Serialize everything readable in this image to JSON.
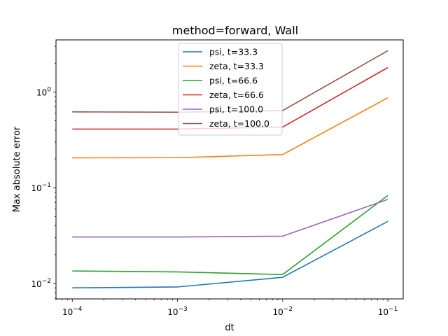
{
  "chart_data": {
    "type": "line",
    "title": "method=forward, Wall",
    "xlabel": "dt",
    "ylabel": "Max absolute error",
    "xscale": "log",
    "yscale": "log",
    "xlim": [
      7e-05,
      0.14
    ],
    "ylim": [
      0.0069,
      3.5
    ],
    "x": [
      0.0001,
      0.001,
      0.01,
      0.1
    ],
    "xticks": [
      {
        "base": "10",
        "exp": "−4",
        "value": 0.0001
      },
      {
        "base": "10",
        "exp": "−3",
        "value": 0.001
      },
      {
        "base": "10",
        "exp": "−2",
        "value": 0.01
      },
      {
        "base": "10",
        "exp": "−1",
        "value": 0.1
      }
    ],
    "yticks": [
      {
        "base": "10",
        "exp": "−2",
        "value": 0.01
      },
      {
        "base": "10",
        "exp": "−1",
        "value": 0.1
      },
      {
        "base": "10",
        "exp": "0",
        "value": 1
      }
    ],
    "grid": false,
    "legend_position": "top-center",
    "series": [
      {
        "name": "psi, t=33.3",
        "color": "#1f77b4",
        "values": [
          0.009,
          0.0092,
          0.0116,
          0.0445
        ]
      },
      {
        "name": "zeta, t=33.3",
        "color": "#ff7f0e",
        "values": [
          0.205,
          0.206,
          0.222,
          0.87
        ]
      },
      {
        "name": "psi, t=66.6",
        "color": "#2ca02c",
        "values": [
          0.0135,
          0.0132,
          0.0124,
          0.083
        ]
      },
      {
        "name": "zeta, t=66.6",
        "color": "#d62728",
        "values": [
          0.41,
          0.41,
          0.43,
          1.8
        ]
      },
      {
        "name": "psi, t=100.0",
        "color": "#9467bd",
        "values": [
          0.0306,
          0.0306,
          0.0312,
          0.0755
        ]
      },
      {
        "name": "zeta, t=100.0",
        "color": "#8c564b",
        "values": [
          0.62,
          0.615,
          0.64,
          2.7
        ]
      }
    ]
  }
}
